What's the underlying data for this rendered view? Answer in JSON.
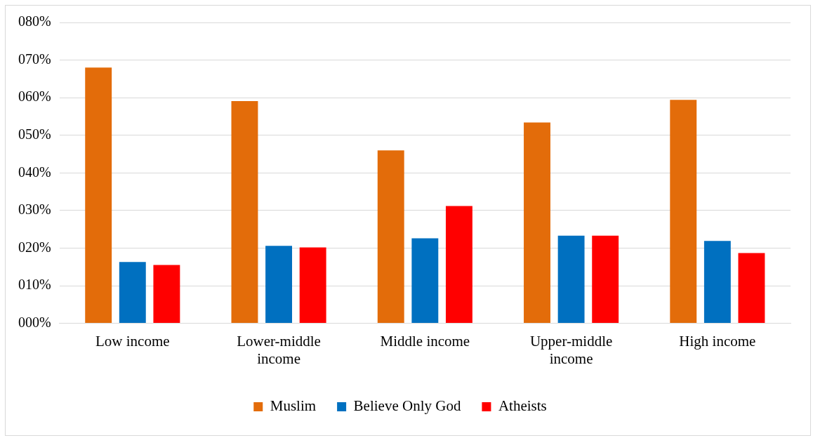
{
  "chart_data": {
    "type": "bar",
    "categories": [
      "Low income",
      "Lower-middle income",
      "Middle income",
      "Upper-middle income",
      "High income"
    ],
    "series": [
      {
        "name": "Muslim",
        "color": "#e36c0a",
        "values": [
          68,
          59.1,
          46,
          53.4,
          59.4
        ]
      },
      {
        "name": "Believe Only God",
        "color": "#0070c0",
        "values": [
          16.3,
          20.6,
          22.6,
          23.3,
          21.9
        ]
      },
      {
        "name": "Atheists",
        "color": "#ff0000",
        "values": [
          15.5,
          20.2,
          31.2,
          23.3,
          18.7
        ]
      }
    ],
    "ylim": [
      0,
      80
    ],
    "yticks": [
      {
        "value": 0,
        "label": "000%"
      },
      {
        "value": 10,
        "label": "010%"
      },
      {
        "value": 20,
        "label": "020%"
      },
      {
        "value": 30,
        "label": "030%"
      },
      {
        "value": 40,
        "label": "040%"
      },
      {
        "value": 50,
        "label": "050%"
      },
      {
        "value": 60,
        "label": "060%"
      },
      {
        "value": 70,
        "label": "070%"
      },
      {
        "value": 80,
        "label": "080%"
      }
    ],
    "grid": "y",
    "legend": "bottom"
  }
}
